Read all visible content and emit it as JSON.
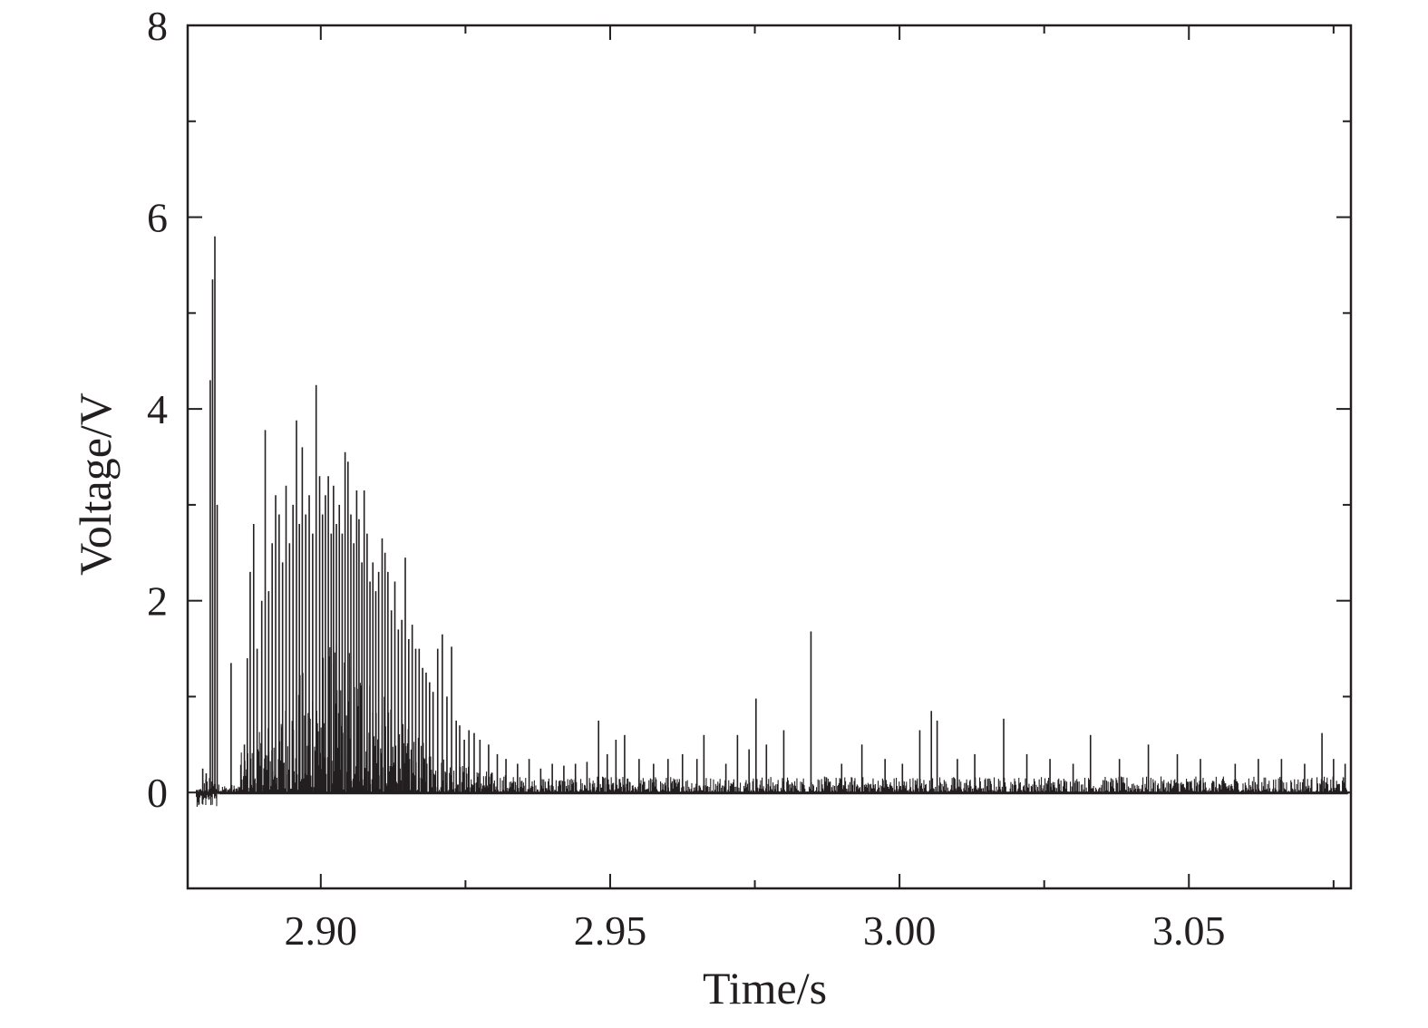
{
  "chart_data": {
    "type": "line",
    "title": "",
    "xlabel": "Time/s",
    "ylabel": "Voltage/V",
    "xlim": [
      2.877,
      3.078
    ],
    "ylim": [
      -1.0,
      8.0
    ],
    "x_ticks": [
      2.9,
      2.95,
      3.0,
      3.05
    ],
    "x_tick_labels": [
      "2.90",
      "2.95",
      "3.00",
      "3.05"
    ],
    "y_ticks": [
      0,
      2,
      4,
      6,
      8
    ],
    "y_tick_labels": [
      "0",
      "2",
      "4",
      "6",
      "8"
    ],
    "grid": false,
    "line_color": "#231f20",
    "series": [
      {
        "peaks": [
          [
            2.8796,
            0.25
          ],
          [
            2.8802,
            0.2
          ],
          [
            2.8809,
            4.3
          ],
          [
            2.8813,
            5.35
          ],
          [
            2.8817,
            5.8
          ],
          [
            2.8821,
            3.0
          ],
          [
            2.8845,
            1.35
          ],
          [
            2.8868,
            0.5
          ],
          [
            2.8873,
            1.4
          ],
          [
            2.8878,
            2.3
          ],
          [
            2.8884,
            2.8
          ],
          [
            2.889,
            1.5
          ],
          [
            2.8898,
            2.0
          ],
          [
            2.8904,
            3.78
          ],
          [
            2.891,
            2.1
          ],
          [
            2.8916,
            2.6
          ],
          [
            2.8922,
            3.1
          ],
          [
            2.8928,
            2.9
          ],
          [
            2.8934,
            2.4
          ],
          [
            2.894,
            3.2
          ],
          [
            2.8946,
            2.6
          ],
          [
            2.8952,
            3.0
          ],
          [
            2.8958,
            3.88
          ],
          [
            2.8963,
            2.8
          ],
          [
            2.8968,
            3.6
          ],
          [
            2.8974,
            2.9
          ],
          [
            2.898,
            3.1
          ],
          [
            2.8986,
            2.7
          ],
          [
            2.8992,
            4.25
          ],
          [
            2.8998,
            3.3
          ],
          [
            2.9003,
            2.9
          ],
          [
            2.9008,
            3.1
          ],
          [
            2.9013,
            3.3
          ],
          [
            2.9018,
            2.7
          ],
          [
            2.9022,
            3.2
          ],
          [
            2.9027,
            2.8
          ],
          [
            2.9032,
            3.0
          ],
          [
            2.9037,
            2.7
          ],
          [
            2.9042,
            3.55
          ],
          [
            2.9047,
            3.45
          ],
          [
            2.9052,
            2.9
          ],
          [
            2.9057,
            2.6
          ],
          [
            2.9062,
            3.15
          ],
          [
            2.9066,
            2.85
          ],
          [
            2.9071,
            2.4
          ],
          [
            2.9075,
            3.15
          ],
          [
            2.908,
            2.7
          ],
          [
            2.9085,
            2.2
          ],
          [
            2.909,
            2.4
          ],
          [
            2.9095,
            2.1
          ],
          [
            2.91,
            2.3
          ],
          [
            2.9106,
            2.65
          ],
          [
            2.9111,
            2.5
          ],
          [
            2.9116,
            2.3
          ],
          [
            2.9122,
            1.9
          ],
          [
            2.9128,
            2.2
          ],
          [
            2.9134,
            1.7
          ],
          [
            2.914,
            1.8
          ],
          [
            2.9146,
            2.45
          ],
          [
            2.9152,
            1.6
          ],
          [
            2.9158,
            1.75
          ],
          [
            2.9164,
            1.5
          ],
          [
            2.917,
            1.5
          ],
          [
            2.9176,
            1.3
          ],
          [
            2.9182,
            1.25
          ],
          [
            2.9188,
            1.15
          ],
          [
            2.9194,
            1.05
          ],
          [
            2.9202,
            1.5
          ],
          [
            2.921,
            1.65
          ],
          [
            2.9218,
            1.0
          ],
          [
            2.9226,
            1.52
          ],
          [
            2.9234,
            0.75
          ],
          [
            2.924,
            0.7
          ],
          [
            2.9248,
            0.55
          ],
          [
            2.9256,
            0.65
          ],
          [
            2.9265,
            0.62
          ],
          [
            2.9275,
            0.55
          ],
          [
            2.929,
            0.5
          ],
          [
            2.9305,
            0.4
          ],
          [
            2.932,
            0.35
          ],
          [
            2.934,
            0.3
          ],
          [
            2.936,
            0.35
          ],
          [
            2.938,
            0.25
          ],
          [
            2.94,
            0.3
          ],
          [
            2.942,
            0.28
          ],
          [
            2.944,
            0.3
          ],
          [
            2.946,
            0.32
          ],
          [
            2.948,
            0.75
          ],
          [
            2.9495,
            0.4
          ],
          [
            2.951,
            0.55
          ],
          [
            2.9525,
            0.6
          ],
          [
            2.955,
            0.35
          ],
          [
            2.9575,
            0.3
          ],
          [
            2.96,
            0.35
          ],
          [
            2.9625,
            0.4
          ],
          [
            2.965,
            0.35
          ],
          [
            2.9662,
            0.6
          ],
          [
            2.97,
            0.3
          ],
          [
            2.972,
            0.6
          ],
          [
            2.974,
            0.45
          ],
          [
            2.9752,
            0.98
          ],
          [
            2.977,
            0.5
          ],
          [
            2.98,
            0.65
          ],
          [
            2.9847,
            1.68
          ],
          [
            2.99,
            0.3
          ],
          [
            2.9935,
            0.5
          ],
          [
            2.9975,
            0.35
          ],
          [
            3.0005,
            0.3
          ],
          [
            3.0035,
            0.65
          ],
          [
            3.0055,
            0.85
          ],
          [
            3.0065,
            0.75
          ],
          [
            3.01,
            0.35
          ],
          [
            3.013,
            0.4
          ],
          [
            3.018,
            0.77
          ],
          [
            3.022,
            0.4
          ],
          [
            3.026,
            0.35
          ],
          [
            3.03,
            0.3
          ],
          [
            3.033,
            0.6
          ],
          [
            3.038,
            0.35
          ],
          [
            3.043,
            0.5
          ],
          [
            3.048,
            0.4
          ],
          [
            3.052,
            0.35
          ],
          [
            3.058,
            0.3
          ],
          [
            3.062,
            0.35
          ],
          [
            3.066,
            0.35
          ],
          [
            3.07,
            0.3
          ],
          [
            3.073,
            0.62
          ],
          [
            3.075,
            0.35
          ],
          [
            3.077,
            0.3
          ]
        ]
      }
    ]
  }
}
